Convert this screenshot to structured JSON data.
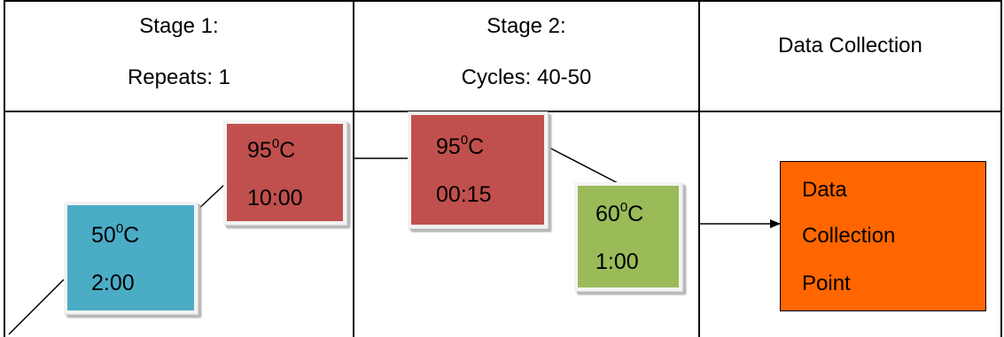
{
  "header": {
    "stage1": {
      "line1": "Stage 1:",
      "line2": "Repeats: 1"
    },
    "stage2": {
      "line1": "Stage 2:",
      "line2": "Cycles: 40-50"
    },
    "data_collection": "Data Collection"
  },
  "boxes": {
    "stage1_hot": {
      "temp": "95",
      "sup": "0",
      "unit": "C",
      "time": "10:00",
      "color": "#c0504d"
    },
    "stage1_cold": {
      "temp": "50",
      "sup": "0",
      "unit": "C",
      "time": "2:00",
      "color": "#4bacc6"
    },
    "stage2_hot": {
      "temp": "95",
      "sup": "0",
      "unit": "C",
      "time": "00:15",
      "color": "#c0504d"
    },
    "stage2_anneal": {
      "temp": "60",
      "sup": "0",
      "unit": "C",
      "time": "1:00",
      "color": "#9bbb59"
    }
  },
  "collection_point": {
    "line1": "Data",
    "line2": "Collection",
    "line3": "Point",
    "color": "#ff6600"
  }
}
